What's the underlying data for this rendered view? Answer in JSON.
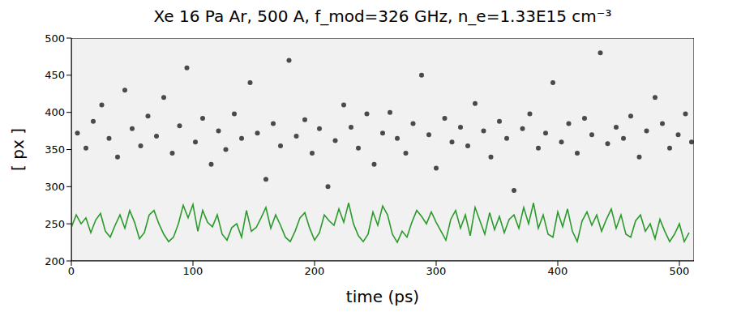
{
  "chart_data": {
    "type": "line",
    "title": "Xe 16 Pa Ar, 500 A, f_mod=326 GHz, n_e=1.33E15 cm⁻³",
    "x_label": "time (ps)",
    "y_label": "[ px ]",
    "xlim": [
      0,
      512
    ],
    "xticks": [
      0,
      100,
      200,
      300,
      400,
      500
    ],
    "ylim": [
      200,
      500
    ],
    "yticks": [
      200,
      250,
      300,
      350,
      400,
      450,
      500
    ],
    "grid": false,
    "series": [
      {
        "type": "scatter",
        "color": "#111111",
        "marker": "circle",
        "x": [
          5,
          12,
          18,
          25,
          31,
          38,
          44,
          50,
          57,
          63,
          70,
          76,
          83,
          89,
          95,
          102,
          108,
          115,
          121,
          127,
          134,
          140,
          147,
          153,
          160,
          166,
          172,
          179,
          185,
          192,
          198,
          204,
          211,
          217,
          224,
          230,
          236,
          243,
          249,
          256,
          262,
          268,
          275,
          281,
          288,
          294,
          300,
          307,
          313,
          320,
          326,
          332,
          339,
          345,
          352,
          358,
          364,
          371,
          377,
          384,
          390,
          396,
          403,
          409,
          416,
          422,
          428,
          435,
          441,
          448,
          454,
          460,
          467,
          473,
          480,
          486,
          492,
          499,
          505,
          510
        ],
        "values": [
          372,
          352,
          388,
          410,
          365,
          340,
          430,
          378,
          355,
          395,
          368,
          420,
          345,
          382,
          460,
          360,
          392,
          330,
          375,
          350,
          398,
          365,
          440,
          372,
          310,
          385,
          355,
          470,
          368,
          390,
          345,
          378,
          300,
          362,
          410,
          380,
          352,
          398,
          330,
          372,
          400,
          365,
          345,
          385,
          450,
          370,
          325,
          392,
          360,
          380,
          355,
          412,
          375,
          340,
          388,
          365,
          295,
          378,
          398,
          352,
          372,
          440,
          360,
          385,
          345,
          392,
          370,
          480,
          358,
          380,
          365,
          395,
          340,
          375,
          420,
          385,
          352,
          370,
          398,
          360
        ]
      },
      {
        "type": "line",
        "color": "#2a9a2a",
        "line_style": "solid",
        "x": [
          0,
          4,
          8,
          12,
          16,
          20,
          24,
          28,
          32,
          36,
          40,
          44,
          48,
          52,
          56,
          60,
          64,
          68,
          72,
          76,
          80,
          84,
          88,
          92,
          96,
          100,
          104,
          108,
          112,
          116,
          120,
          124,
          128,
          132,
          136,
          140,
          144,
          148,
          152,
          156,
          160,
          164,
          168,
          172,
          176,
          180,
          184,
          188,
          192,
          196,
          200,
          204,
          208,
          212,
          216,
          220,
          224,
          228,
          232,
          236,
          240,
          244,
          248,
          252,
          256,
          260,
          264,
          268,
          272,
          276,
          280,
          284,
          288,
          292,
          296,
          300,
          304,
          308,
          312,
          316,
          320,
          324,
          328,
          332,
          336,
          340,
          344,
          348,
          352,
          356,
          360,
          364,
          368,
          372,
          376,
          380,
          384,
          388,
          392,
          396,
          400,
          404,
          408,
          412,
          416,
          420,
          424,
          428,
          432,
          436,
          440,
          444,
          448,
          452,
          456,
          460,
          464,
          468,
          472,
          476,
          480,
          484,
          488,
          492,
          496,
          500,
          504,
          508
        ],
        "values": [
          245,
          262,
          250,
          258,
          238,
          255,
          264,
          240,
          232,
          248,
          262,
          244,
          268,
          252,
          230,
          238,
          262,
          268,
          250,
          236,
          226,
          232,
          250,
          275,
          258,
          276,
          240,
          268,
          252,
          246,
          262,
          236,
          228,
          245,
          250,
          232,
          268,
          240,
          245,
          258,
          272,
          244,
          262,
          248,
          232,
          226,
          240,
          258,
          265,
          244,
          228,
          238,
          262,
          254,
          248,
          270,
          252,
          278,
          250,
          234,
          226,
          236,
          266,
          248,
          274,
          262,
          236,
          225,
          240,
          232,
          252,
          268,
          260,
          250,
          266,
          252,
          240,
          228,
          256,
          268,
          244,
          262,
          234,
          272,
          254,
          236,
          265,
          242,
          260,
          238,
          256,
          262,
          244,
          272,
          250,
          278,
          244,
          262,
          236,
          232,
          266,
          246,
          270,
          240,
          226,
          254,
          266,
          248,
          262,
          240,
          256,
          270,
          244,
          262,
          236,
          232,
          254,
          262,
          240,
          250,
          230,
          256,
          240,
          226,
          236,
          250,
          226,
          238
        ]
      }
    ]
  }
}
